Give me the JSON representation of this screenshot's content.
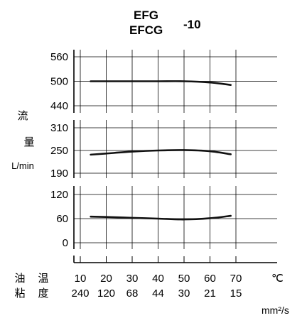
{
  "title": {
    "line1": "EFG",
    "line2": "EFCG",
    "suffix": "-10"
  },
  "ylabel": {
    "char1": "流",
    "char2": "量",
    "unit": "L/min"
  },
  "xlabel": {
    "temp_row_label": [
      "油",
      "温"
    ],
    "visc_row_label": [
      "粘",
      "度"
    ],
    "temp_unit": "℃",
    "visc_unit": "mm²/s"
  },
  "chart_data": [
    {
      "type": "line",
      "panel": "top",
      "ylim": [
        440,
        560
      ],
      "yticks": [
        "560",
        "500",
        "440"
      ],
      "xlim": [
        10,
        70
      ],
      "x": [
        14,
        20,
        30,
        40,
        50,
        60,
        68
      ],
      "values": [
        500,
        500,
        500,
        500,
        500,
        497,
        491
      ],
      "grid": true
    },
    {
      "type": "line",
      "panel": "middle",
      "ylim": [
        190,
        310
      ],
      "yticks": [
        "310",
        "250",
        "190"
      ],
      "xlim": [
        10,
        70
      ],
      "x": [
        14,
        20,
        30,
        40,
        50,
        60,
        68
      ],
      "values": [
        239,
        242,
        247,
        250,
        251,
        248,
        240
      ],
      "grid": true
    },
    {
      "type": "line",
      "panel": "bottom",
      "ylim": [
        0,
        120
      ],
      "yticks": [
        "120",
        "60",
        "0"
      ],
      "xlim": [
        10,
        70
      ],
      "x": [
        14,
        20,
        30,
        40,
        50,
        60,
        68
      ],
      "values": [
        65,
        64,
        62,
        60,
        58,
        61,
        67
      ],
      "grid": true
    }
  ],
  "x_temperature_ticks": [
    "10",
    "20",
    "30",
    "40",
    "50",
    "60",
    "70"
  ],
  "x_viscosity_ticks": [
    "240",
    "120",
    "68",
    "44",
    "30",
    "21",
    "15"
  ],
  "colors": {
    "line": "#111111",
    "grid": "#000000",
    "background": "#ffffff"
  }
}
